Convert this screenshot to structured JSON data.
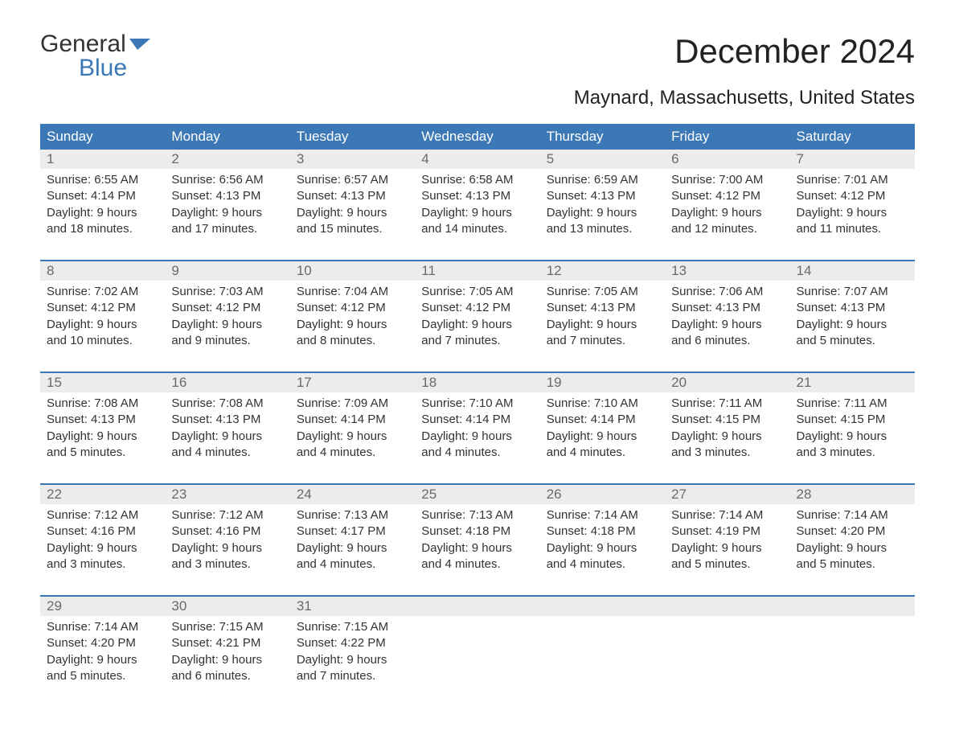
{
  "logo": {
    "word1": "General",
    "word2": "Blue",
    "flag_color": "#3b78b5"
  },
  "title": "December 2024",
  "subtitle": "Maynard, Massachusetts, United States",
  "colors": {
    "header_bg": "#3b78b5",
    "header_text": "#ffffff",
    "daynum_bg": "#ececec",
    "daynum_text": "#6a6a6a",
    "body_text": "#333333",
    "rule": "#3b78b5",
    "page_bg": "#ffffff"
  },
  "font_sizes": {
    "title": 42,
    "subtitle": 24,
    "header": 17,
    "daynum": 17,
    "body": 15
  },
  "days_of_week": [
    "Sunday",
    "Monday",
    "Tuesday",
    "Wednesday",
    "Thursday",
    "Friday",
    "Saturday"
  ],
  "weeks": [
    [
      {
        "n": "1",
        "sr": "Sunrise: 6:55 AM",
        "ss": "Sunset: 4:14 PM",
        "d1": "Daylight: 9 hours",
        "d2": "and 18 minutes."
      },
      {
        "n": "2",
        "sr": "Sunrise: 6:56 AM",
        "ss": "Sunset: 4:13 PM",
        "d1": "Daylight: 9 hours",
        "d2": "and 17 minutes."
      },
      {
        "n": "3",
        "sr": "Sunrise: 6:57 AM",
        "ss": "Sunset: 4:13 PM",
        "d1": "Daylight: 9 hours",
        "d2": "and 15 minutes."
      },
      {
        "n": "4",
        "sr": "Sunrise: 6:58 AM",
        "ss": "Sunset: 4:13 PM",
        "d1": "Daylight: 9 hours",
        "d2": "and 14 minutes."
      },
      {
        "n": "5",
        "sr": "Sunrise: 6:59 AM",
        "ss": "Sunset: 4:13 PM",
        "d1": "Daylight: 9 hours",
        "d2": "and 13 minutes."
      },
      {
        "n": "6",
        "sr": "Sunrise: 7:00 AM",
        "ss": "Sunset: 4:12 PM",
        "d1": "Daylight: 9 hours",
        "d2": "and 12 minutes."
      },
      {
        "n": "7",
        "sr": "Sunrise: 7:01 AM",
        "ss": "Sunset: 4:12 PM",
        "d1": "Daylight: 9 hours",
        "d2": "and 11 minutes."
      }
    ],
    [
      {
        "n": "8",
        "sr": "Sunrise: 7:02 AM",
        "ss": "Sunset: 4:12 PM",
        "d1": "Daylight: 9 hours",
        "d2": "and 10 minutes."
      },
      {
        "n": "9",
        "sr": "Sunrise: 7:03 AM",
        "ss": "Sunset: 4:12 PM",
        "d1": "Daylight: 9 hours",
        "d2": "and 9 minutes."
      },
      {
        "n": "10",
        "sr": "Sunrise: 7:04 AM",
        "ss": "Sunset: 4:12 PM",
        "d1": "Daylight: 9 hours",
        "d2": "and 8 minutes."
      },
      {
        "n": "11",
        "sr": "Sunrise: 7:05 AM",
        "ss": "Sunset: 4:12 PM",
        "d1": "Daylight: 9 hours",
        "d2": "and 7 minutes."
      },
      {
        "n": "12",
        "sr": "Sunrise: 7:05 AM",
        "ss": "Sunset: 4:13 PM",
        "d1": "Daylight: 9 hours",
        "d2": "and 7 minutes."
      },
      {
        "n": "13",
        "sr": "Sunrise: 7:06 AM",
        "ss": "Sunset: 4:13 PM",
        "d1": "Daylight: 9 hours",
        "d2": "and 6 minutes."
      },
      {
        "n": "14",
        "sr": "Sunrise: 7:07 AM",
        "ss": "Sunset: 4:13 PM",
        "d1": "Daylight: 9 hours",
        "d2": "and 5 minutes."
      }
    ],
    [
      {
        "n": "15",
        "sr": "Sunrise: 7:08 AM",
        "ss": "Sunset: 4:13 PM",
        "d1": "Daylight: 9 hours",
        "d2": "and 5 minutes."
      },
      {
        "n": "16",
        "sr": "Sunrise: 7:08 AM",
        "ss": "Sunset: 4:13 PM",
        "d1": "Daylight: 9 hours",
        "d2": "and 4 minutes."
      },
      {
        "n": "17",
        "sr": "Sunrise: 7:09 AM",
        "ss": "Sunset: 4:14 PM",
        "d1": "Daylight: 9 hours",
        "d2": "and 4 minutes."
      },
      {
        "n": "18",
        "sr": "Sunrise: 7:10 AM",
        "ss": "Sunset: 4:14 PM",
        "d1": "Daylight: 9 hours",
        "d2": "and 4 minutes."
      },
      {
        "n": "19",
        "sr": "Sunrise: 7:10 AM",
        "ss": "Sunset: 4:14 PM",
        "d1": "Daylight: 9 hours",
        "d2": "and 4 minutes."
      },
      {
        "n": "20",
        "sr": "Sunrise: 7:11 AM",
        "ss": "Sunset: 4:15 PM",
        "d1": "Daylight: 9 hours",
        "d2": "and 3 minutes."
      },
      {
        "n": "21",
        "sr": "Sunrise: 7:11 AM",
        "ss": "Sunset: 4:15 PM",
        "d1": "Daylight: 9 hours",
        "d2": "and 3 minutes."
      }
    ],
    [
      {
        "n": "22",
        "sr": "Sunrise: 7:12 AM",
        "ss": "Sunset: 4:16 PM",
        "d1": "Daylight: 9 hours",
        "d2": "and 3 minutes."
      },
      {
        "n": "23",
        "sr": "Sunrise: 7:12 AM",
        "ss": "Sunset: 4:16 PM",
        "d1": "Daylight: 9 hours",
        "d2": "and 3 minutes."
      },
      {
        "n": "24",
        "sr": "Sunrise: 7:13 AM",
        "ss": "Sunset: 4:17 PM",
        "d1": "Daylight: 9 hours",
        "d2": "and 4 minutes."
      },
      {
        "n": "25",
        "sr": "Sunrise: 7:13 AM",
        "ss": "Sunset: 4:18 PM",
        "d1": "Daylight: 9 hours",
        "d2": "and 4 minutes."
      },
      {
        "n": "26",
        "sr": "Sunrise: 7:14 AM",
        "ss": "Sunset: 4:18 PM",
        "d1": "Daylight: 9 hours",
        "d2": "and 4 minutes."
      },
      {
        "n": "27",
        "sr": "Sunrise: 7:14 AM",
        "ss": "Sunset: 4:19 PM",
        "d1": "Daylight: 9 hours",
        "d2": "and 5 minutes."
      },
      {
        "n": "28",
        "sr": "Sunrise: 7:14 AM",
        "ss": "Sunset: 4:20 PM",
        "d1": "Daylight: 9 hours",
        "d2": "and 5 minutes."
      }
    ],
    [
      {
        "n": "29",
        "sr": "Sunrise: 7:14 AM",
        "ss": "Sunset: 4:20 PM",
        "d1": "Daylight: 9 hours",
        "d2": "and 5 minutes."
      },
      {
        "n": "30",
        "sr": "Sunrise: 7:15 AM",
        "ss": "Sunset: 4:21 PM",
        "d1": "Daylight: 9 hours",
        "d2": "and 6 minutes."
      },
      {
        "n": "31",
        "sr": "Sunrise: 7:15 AM",
        "ss": "Sunset: 4:22 PM",
        "d1": "Daylight: 9 hours",
        "d2": "and 7 minutes."
      },
      null,
      null,
      null,
      null
    ]
  ]
}
